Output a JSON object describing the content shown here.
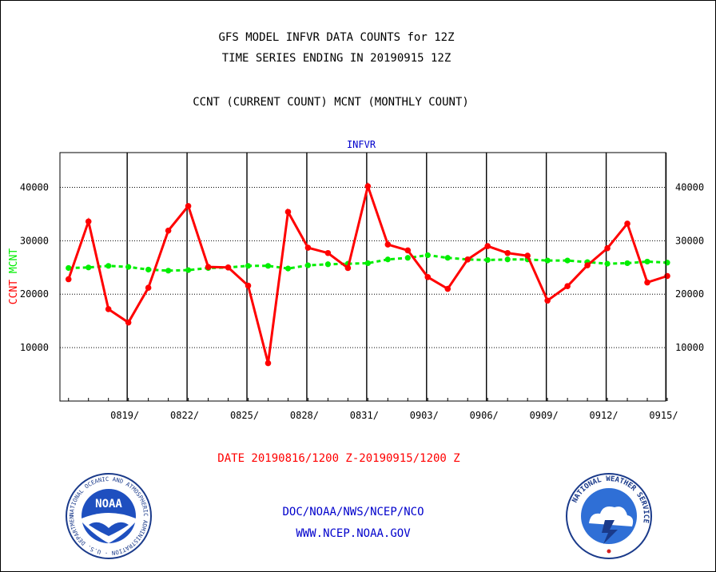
{
  "header": {
    "line1": "GFS MODEL INFVR DATA COUNTS for 12Z",
    "line2": "TIME SERIES ENDING IN 20190915 12Z",
    "line3": "CCNT (CURRENT COUNT) MCNT (MONTHLY COUNT)"
  },
  "footer": {
    "date_range": "DATE 20190816/1200 Z-20190915/1200 Z",
    "org": "DOC/NOAA/NWS/NCEP/NCO",
    "url": "WWW.NCEP.NOAA.GOV"
  },
  "logos": {
    "noaa": {
      "text": "NOAA",
      "ring_text": "NATIONAL OCEANIC AND ATMOSPHERIC ADMINISTRATION · U.S. DEPARTMENT OF COMMERCE",
      "icon": "noaa-logo"
    },
    "nws": {
      "ring_text": "NATIONAL WEATHER SERVICE",
      "icon": "nws-logo"
    }
  },
  "colors": {
    "ccnt": "#ff0000",
    "mcnt": "#00ee00",
    "title": "#0000cc",
    "date": "#ff0000",
    "grid": "#000000"
  },
  "chart_data": {
    "type": "line",
    "title": "INFVR",
    "ylabel_parts": [
      {
        "text": "CCNT",
        "color": "#ff0000"
      },
      {
        "text": "MCNT",
        "color": "#00ee00"
      }
    ],
    "ylim": [
      0,
      46500
    ],
    "yticks": [
      10000,
      20000,
      30000,
      40000
    ],
    "ytick_labels": [
      "10000",
      "20000",
      "30000",
      "40000"
    ],
    "xlim": [
      0,
      30
    ],
    "xtick_labels": [
      "0819/",
      "0822/",
      "0825/",
      "0828/",
      "0831/",
      "0903/",
      "0906/",
      "0909/",
      "0912/",
      "0915/"
    ],
    "grid": true,
    "series": [
      {
        "name": "CCNT",
        "values": [
          22800,
          33600,
          17200,
          14700,
          21200,
          31900,
          36500,
          25100,
          25000,
          21600,
          7100,
          35400,
          28700,
          27700,
          24900,
          40200,
          29300,
          28200,
          23200,
          21000,
          26500,
          29000,
          27700,
          27200,
          18800,
          21500,
          25400,
          28600,
          33200,
          22200,
          23400
        ]
      },
      {
        "name": "MCNT",
        "values": [
          24900,
          25000,
          25300,
          25100,
          24600,
          24400,
          24500,
          24900,
          25000,
          25300,
          25300,
          24800,
          25400,
          25600,
          25700,
          25800,
          26500,
          26800,
          27300,
          26800,
          26500,
          26400,
          26500,
          26500,
          26300,
          26300,
          26000,
          25700,
          25800,
          26100,
          25900
        ]
      }
    ]
  }
}
